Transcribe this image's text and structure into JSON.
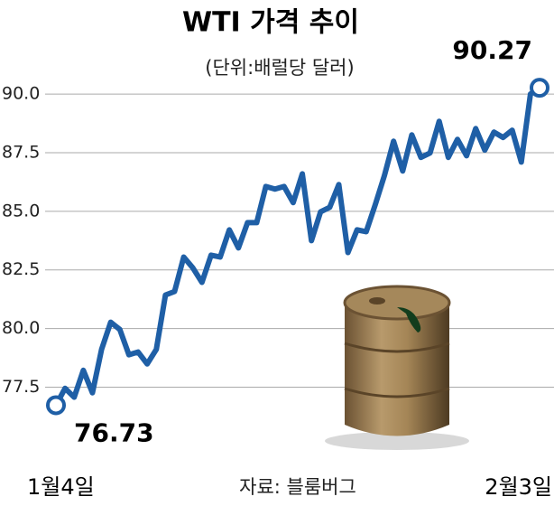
{
  "chart_data": {
    "type": "line",
    "title": "WTI 가격 추이",
    "subtitle": "(단위:배럴당 달러)",
    "source": "자료: 블룸버그",
    "categories": [
      "1월4일",
      null,
      null,
      null,
      null,
      null,
      null,
      null,
      null,
      null,
      null,
      null,
      null,
      null,
      null,
      null,
      null,
      null,
      null,
      null,
      null,
      null,
      null,
      null,
      null,
      null,
      null,
      null,
      null,
      null,
      null,
      null,
      null,
      null,
      null,
      null,
      null,
      null,
      null,
      null,
      null,
      null,
      null,
      null,
      null,
      null,
      null,
      null,
      null,
      null,
      null,
      null,
      null,
      "2월3일"
    ],
    "values": [
      76.73,
      77.45,
      77.07,
      78.22,
      77.26,
      79.11,
      80.27,
      79.96,
      78.88,
      79.0,
      78.49,
      79.11,
      81.43,
      81.58,
      83.05,
      82.59,
      81.97,
      83.13,
      83.05,
      84.21,
      83.44,
      84.52,
      84.52,
      86.06,
      85.95,
      86.06,
      85.37,
      86.6,
      83.75,
      84.98,
      85.17,
      86.14,
      83.24,
      84.21,
      84.13,
      85.29,
      86.53,
      87.99,
      86.72,
      88.26,
      87.3,
      87.49,
      88.84,
      87.3,
      88.07,
      87.37,
      88.53,
      87.61,
      88.38,
      88.15,
      88.46,
      87.1,
      90.0,
      90.27
    ],
    "color": "#1f5fa6",
    "ylim": [
      75.9,
      91.2
    ],
    "yticks": [
      {
        "value": 77.5,
        "label": "77.5"
      },
      {
        "value": 80,
        "label": "80.0"
      },
      82.5,
      {
        "value": 85,
        "label": "85.0"
      },
      87.5,
      {
        "value": 90,
        "label": "90.0"
      }
    ],
    "grid": true
  }
}
